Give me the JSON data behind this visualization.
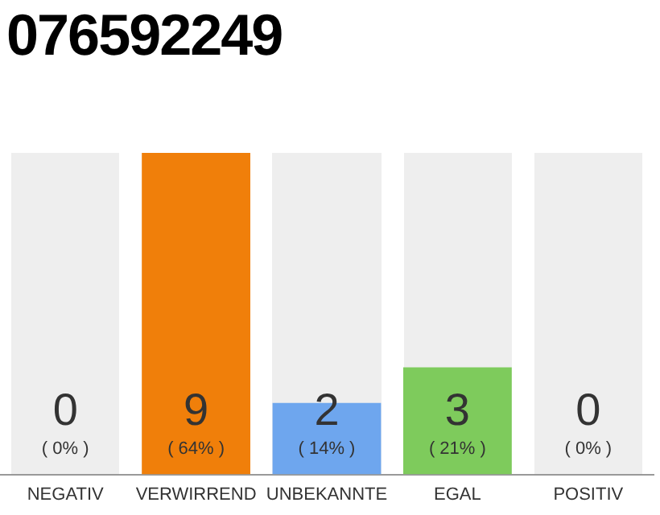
{
  "chart_data": {
    "type": "bar",
    "title": "076592249",
    "categories": [
      "NEGATIV",
      "VERWIRREND",
      "UNBEKANNTE",
      "EGAL",
      "POSITIV"
    ],
    "values": [
      0,
      9,
      2,
      3,
      0
    ],
    "colors": [
      "#cccccc",
      "#f07f0a",
      "#6ea6ee",
      "#7ecb5c",
      "#cccccc"
    ],
    "value_labels": [
      "0",
      "9",
      "2",
      "3",
      "0"
    ],
    "annotations": [
      "( 0% )",
      "( 64% )",
      "( 14% )",
      "( 21% )",
      "( 0% )"
    ],
    "grid": false,
    "legend": false
  }
}
